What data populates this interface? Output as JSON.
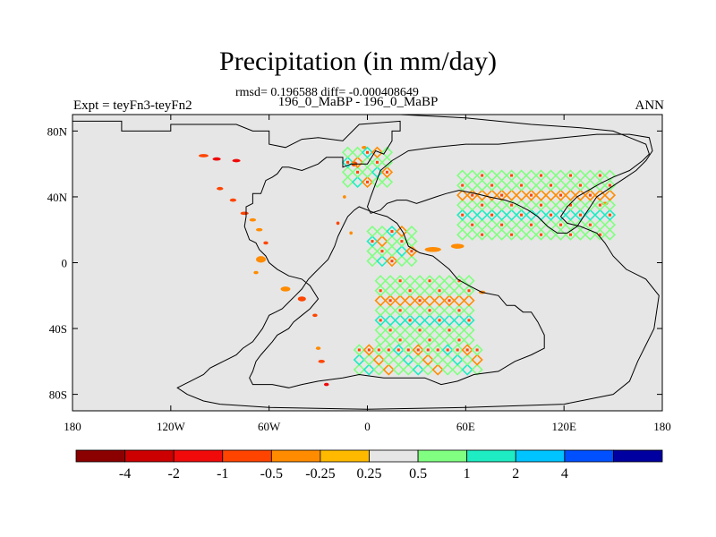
{
  "figure": {
    "title": "Precipitation (in mm/day)",
    "stats": "rmsd= 0.196588 diff= -0.000408649",
    "experiment": "Expt = teyFn3-teyFn2",
    "case": "196_0_MaBP - 196_0_MaBP",
    "season": "ANN"
  },
  "map": {
    "background_color": "#e6e6e6",
    "coast_color": "#000000",
    "lon_range": [
      -180,
      180
    ],
    "lat_range": [
      -90,
      90
    ],
    "lon_ticks": [
      {
        "value": -180,
        "label": "180"
      },
      {
        "value": -120,
        "label": "120W"
      },
      {
        "value": -60,
        "label": "60W"
      },
      {
        "value": 0,
        "label": "0"
      },
      {
        "value": 60,
        "label": "60E"
      },
      {
        "value": 120,
        "label": "120E"
      },
      {
        "value": 180,
        "label": "180"
      }
    ],
    "lat_ticks": [
      {
        "value": 80,
        "label": "80N"
      },
      {
        "value": 40,
        "label": "40N"
      },
      {
        "value": 0,
        "label": "0"
      },
      {
        "value": -40,
        "label": "40S"
      },
      {
        "value": -80,
        "label": "80S"
      }
    ],
    "continents": [
      {
        "name": "west-continent",
        "outline": [
          [
            -180,
            86
          ],
          [
            -150,
            86
          ],
          [
            -150,
            80
          ],
          [
            -120,
            80
          ],
          [
            -120,
            84
          ],
          [
            -100,
            84
          ],
          [
            -80,
            84
          ],
          [
            -70,
            80
          ],
          [
            -60,
            80
          ],
          [
            -60,
            72
          ],
          [
            -50,
            70
          ],
          [
            -40,
            75
          ],
          [
            -30,
            76
          ],
          [
            -15,
            74
          ],
          [
            -5,
            84
          ],
          [
            20,
            86
          ],
          [
            20,
            80
          ],
          [
            15,
            80
          ],
          [
            15,
            74
          ],
          [
            10,
            66
          ],
          [
            5,
            68
          ],
          [
            0,
            60
          ],
          [
            -5,
            60
          ],
          [
            -10,
            60
          ],
          [
            -15,
            58
          ],
          [
            -15,
            64
          ],
          [
            -25,
            64
          ],
          [
            -30,
            60
          ],
          [
            -40,
            56
          ],
          [
            -48,
            58
          ],
          [
            -52,
            58
          ],
          [
            -55,
            54
          ],
          [
            -58,
            52
          ],
          [
            -62,
            50
          ],
          [
            -65,
            42
          ],
          [
            -70,
            42
          ],
          [
            -70,
            36
          ],
          [
            -74,
            34
          ],
          [
            -74,
            28
          ],
          [
            -75,
            22
          ],
          [
            -72,
            14
          ],
          [
            -68,
            12
          ],
          [
            -66,
            8
          ],
          [
            -62,
            4
          ],
          [
            -60,
            0
          ],
          [
            -55,
            -4
          ],
          [
            -48,
            -8
          ],
          [
            -40,
            -10
          ],
          [
            -35,
            -14
          ],
          [
            -30,
            -22
          ],
          [
            -35,
            -28
          ],
          [
            -40,
            -32
          ],
          [
            -45,
            -36
          ],
          [
            -48,
            -40
          ],
          [
            -55,
            -44
          ],
          [
            -58,
            -48
          ],
          [
            -65,
            -56
          ],
          [
            -68,
            -60
          ],
          [
            -70,
            -66
          ],
          [
            -72,
            -70
          ],
          [
            -70,
            -74
          ],
          [
            -58,
            -74
          ],
          [
            -48,
            -76
          ],
          [
            -40,
            -74
          ],
          [
            -30,
            -72
          ],
          [
            -15,
            -70
          ],
          [
            -5,
            -68
          ],
          [
            10,
            -70
          ],
          [
            20,
            -70
          ],
          [
            35,
            -70
          ],
          [
            45,
            -74
          ],
          [
            55,
            -72
          ],
          [
            65,
            -68
          ],
          [
            80,
            -66
          ],
          [
            90,
            -60
          ],
          [
            100,
            -56
          ],
          [
            108,
            -52
          ],
          [
            108,
            -44
          ],
          [
            104,
            -36
          ],
          [
            100,
            -30
          ],
          [
            95,
            -30
          ],
          [
            90,
            -26
          ],
          [
            85,
            -26
          ],
          [
            80,
            -20
          ],
          [
            70,
            -18
          ],
          [
            62,
            -14
          ],
          [
            55,
            -10
          ],
          [
            50,
            -4
          ],
          [
            45,
            0
          ],
          [
            40,
            4
          ],
          [
            32,
            6
          ],
          [
            25,
            10
          ],
          [
            22,
            18
          ],
          [
            18,
            24
          ],
          [
            12,
            28
          ],
          [
            5,
            30
          ],
          [
            0,
            32
          ],
          [
            -5,
            34
          ],
          [
            -8,
            32
          ],
          [
            -12,
            28
          ],
          [
            -15,
            22
          ],
          [
            -18,
            16
          ],
          [
            -20,
            10
          ],
          [
            -22,
            6
          ],
          [
            -24,
            2
          ],
          [
            -28,
            -2
          ],
          [
            -32,
            -6
          ],
          [
            -36,
            -10
          ],
          [
            -40,
            -16
          ],
          [
            -44,
            -20
          ],
          [
            -48,
            -24
          ],
          [
            -52,
            -28
          ],
          [
            -56,
            -30
          ],
          [
            -60,
            -32
          ],
          [
            -64,
            -40
          ],
          [
            -70,
            -48
          ],
          [
            -76,
            -52
          ],
          [
            -80,
            -56
          ],
          [
            -84,
            -58
          ],
          [
            -88,
            -60
          ],
          [
            -92,
            -62
          ],
          [
            -96,
            -64
          ],
          [
            -100,
            -68
          ],
          [
            -104,
            -70
          ],
          [
            -108,
            -72
          ],
          [
            -112,
            -74
          ],
          [
            -116,
            -76
          ],
          [
            -110,
            -80
          ],
          [
            -100,
            -84
          ],
          [
            -90,
            -86
          ],
          [
            -60,
            -88
          ],
          [
            0,
            -89
          ],
          [
            60,
            -88
          ],
          [
            120,
            -86
          ],
          [
            150,
            -80
          ],
          [
            160,
            -72
          ],
          [
            165,
            -60
          ],
          [
            170,
            -50
          ],
          [
            175,
            -40
          ],
          [
            178,
            -20
          ],
          [
            170,
            -10
          ],
          [
            158,
            -4
          ],
          [
            150,
            4
          ],
          [
            145,
            12
          ],
          [
            140,
            18
          ],
          [
            130,
            22
          ],
          [
            122,
            24
          ],
          [
            118,
            28
          ],
          [
            122,
            34
          ],
          [
            128,
            40
          ],
          [
            135,
            44
          ],
          [
            142,
            48
          ],
          [
            150,
            52
          ],
          [
            160,
            56
          ],
          [
            168,
            62
          ],
          [
            172,
            66
          ],
          [
            170,
            72
          ],
          [
            160,
            76
          ],
          [
            150,
            80
          ],
          [
            130,
            82
          ],
          [
            100,
            84
          ],
          [
            60,
            88
          ],
          [
            20,
            90
          ],
          [
            -20,
            90
          ],
          [
            -60,
            90
          ],
          [
            -100,
            90
          ],
          [
            -140,
            90
          ],
          [
            -180,
            90
          ]
        ]
      },
      {
        "name": "east-continent",
        "outline": [
          [
            2,
            30
          ],
          [
            8,
            32
          ],
          [
            12,
            36
          ],
          [
            18,
            38
          ],
          [
            24,
            38
          ],
          [
            30,
            36
          ],
          [
            36,
            38
          ],
          [
            42,
            40
          ],
          [
            48,
            42
          ],
          [
            56,
            44
          ],
          [
            66,
            42
          ],
          [
            74,
            40
          ],
          [
            84,
            38
          ],
          [
            90,
            36
          ],
          [
            98,
            32
          ],
          [
            104,
            28
          ],
          [
            110,
            22
          ],
          [
            116,
            18
          ],
          [
            122,
            18
          ],
          [
            128,
            22
          ],
          [
            132,
            28
          ],
          [
            136,
            34
          ],
          [
            140,
            40
          ],
          [
            146,
            44
          ],
          [
            152,
            48
          ],
          [
            158,
            52
          ],
          [
            164,
            56
          ],
          [
            170,
            62
          ],
          [
            174,
            68
          ],
          [
            172,
            76
          ],
          [
            160,
            78
          ],
          [
            140,
            78
          ],
          [
            120,
            76
          ],
          [
            100,
            74
          ],
          [
            80,
            72
          ],
          [
            60,
            72
          ],
          [
            40,
            70
          ],
          [
            25,
            68
          ],
          [
            15,
            62
          ],
          [
            8,
            56
          ],
          [
            5,
            48
          ],
          [
            2,
            40
          ],
          [
            0,
            34
          ]
        ]
      }
    ],
    "blobs": [
      {
        "lon": -176,
        "lat": 18,
        "value": 0.4,
        "w": 16,
        "h": 5
      },
      {
        "lon": -176,
        "lat": -12,
        "value": 0.4,
        "w": 14,
        "h": 4
      },
      {
        "lon": 168,
        "lat": -14,
        "value": 0.4,
        "w": 28,
        "h": 5
      },
      {
        "lon": 125,
        "lat": -14,
        "value": 0.4,
        "w": 10,
        "h": 3
      },
      {
        "lon": 80,
        "lat": -14,
        "value": 0.3,
        "w": 6,
        "h": 3
      },
      {
        "lon": 115,
        "lat": -36,
        "value": 0.4,
        "w": 6,
        "h": 3
      },
      {
        "lon": 40,
        "lat": 8,
        "value": -0.4,
        "w": 10,
        "h": 3
      },
      {
        "lon": 55,
        "lat": 10,
        "value": -0.4,
        "w": 8,
        "h": 3
      },
      {
        "lon": 77,
        "lat": 40,
        "value": 0.4,
        "w": 10,
        "h": 3
      },
      {
        "lon": 155,
        "lat": 40,
        "value": 0.4,
        "w": 6,
        "h": 2
      },
      {
        "lon": -100,
        "lat": 65,
        "value": -0.6,
        "w": 6,
        "h": 2
      },
      {
        "lon": -92,
        "lat": 63,
        "value": -1.2,
        "w": 5,
        "h": 2
      },
      {
        "lon": -80,
        "lat": 62,
        "value": -1.5,
        "w": 5,
        "h": 2
      },
      {
        "lon": -90,
        "lat": 45,
        "value": -0.6,
        "w": 4,
        "h": 2
      },
      {
        "lon": -82,
        "lat": 38,
        "value": -0.6,
        "w": 4,
        "h": 2
      },
      {
        "lon": -75,
        "lat": 30,
        "value": -0.6,
        "w": 5,
        "h": 2
      },
      {
        "lon": -70,
        "lat": 26,
        "value": -0.4,
        "w": 4,
        "h": 2
      },
      {
        "lon": -66,
        "lat": 20,
        "value": -0.4,
        "w": 4,
        "h": 2
      },
      {
        "lon": -62,
        "lat": 12,
        "value": -0.6,
        "w": 3,
        "h": 2
      },
      {
        "lon": -65,
        "lat": 2,
        "value": -0.5,
        "w": 6,
        "h": 4
      },
      {
        "lon": -68,
        "lat": -6,
        "value": -0.4,
        "w": 3,
        "h": 2
      },
      {
        "lon": -50,
        "lat": -16,
        "value": -0.4,
        "w": 6,
        "h": 3
      },
      {
        "lon": -40,
        "lat": -22,
        "value": -0.6,
        "w": 5,
        "h": 3
      },
      {
        "lon": -32,
        "lat": -32,
        "value": -0.6,
        "w": 3,
        "h": 2
      },
      {
        "lon": -30,
        "lat": -52,
        "value": -0.4,
        "w": 3,
        "h": 2
      },
      {
        "lon": -28,
        "lat": -60,
        "value": -0.6,
        "w": 4,
        "h": 2
      },
      {
        "lon": -25,
        "lat": -74,
        "value": -1.2,
        "w": 3,
        "h": 2
      },
      {
        "lon": -8,
        "lat": 60,
        "value": -0.8,
        "w": 4,
        "h": 3
      },
      {
        "lon": -14,
        "lat": 40,
        "value": -0.4,
        "w": 2,
        "h": 2
      },
      {
        "lon": -18,
        "lat": 24,
        "value": -0.6,
        "w": 2,
        "h": 2
      },
      {
        "lon": -10,
        "lat": 18,
        "value": -0.4,
        "w": 2,
        "h": 2
      },
      {
        "lon": 0,
        "lat": 50,
        "value": 0.3,
        "w": 6,
        "h": 2
      },
      {
        "lon": -2,
        "lat": 70,
        "value": -0.3,
        "w": 3,
        "h": 2
      },
      {
        "lon": 10,
        "lat": -62,
        "value": 0.4,
        "w": 10,
        "h": 3
      },
      {
        "lon": 28,
        "lat": -66,
        "value": 0.4,
        "w": 6,
        "h": 2
      },
      {
        "lon": 70,
        "lat": -18,
        "value": -0.4,
        "w": 4,
        "h": 2
      },
      {
        "lon": 145,
        "lat": 36,
        "value": -0.5,
        "w": 4,
        "h": 2
      }
    ],
    "hatch_regions": [
      {
        "name": "europe-band",
        "lon_min": 55,
        "lon_max": 150,
        "lat_min": 14,
        "lat_max": 56
      },
      {
        "name": "north-europe",
        "lon_min": -15,
        "lon_max": 15,
        "lat_min": 46,
        "lat_max": 66
      },
      {
        "name": "africa-south",
        "lon_min": 5,
        "lon_max": 60,
        "lat_min": -50,
        "lat_max": -8
      },
      {
        "name": "antarctic-edge",
        "lon_min": -8,
        "lon_max": 65,
        "lat_min": -68,
        "lat_max": -50
      },
      {
        "name": "mid-east",
        "lon_min": 0,
        "lon_max": 30,
        "lat_min": -2,
        "lat_max": 18
      }
    ]
  },
  "colorbar": {
    "colors": [
      "#8b0000",
      "#cc0000",
      "#f00a0a",
      "#ff4400",
      "#ff8b00",
      "#ffba00",
      "#e6e6e6",
      "#80ff80",
      "#1eecc2",
      "#00c4ff",
      "#0050ff",
      "#0000a0"
    ],
    "labels": [
      "-4",
      "-2",
      "-1",
      "-0.5",
      "-0.25",
      "0.25",
      "0.5",
      "1",
      "2",
      "4"
    ],
    "levels": [
      -4,
      -2,
      -1,
      -0.5,
      -0.25,
      0.25,
      0.5,
      1,
      2,
      4
    ]
  }
}
